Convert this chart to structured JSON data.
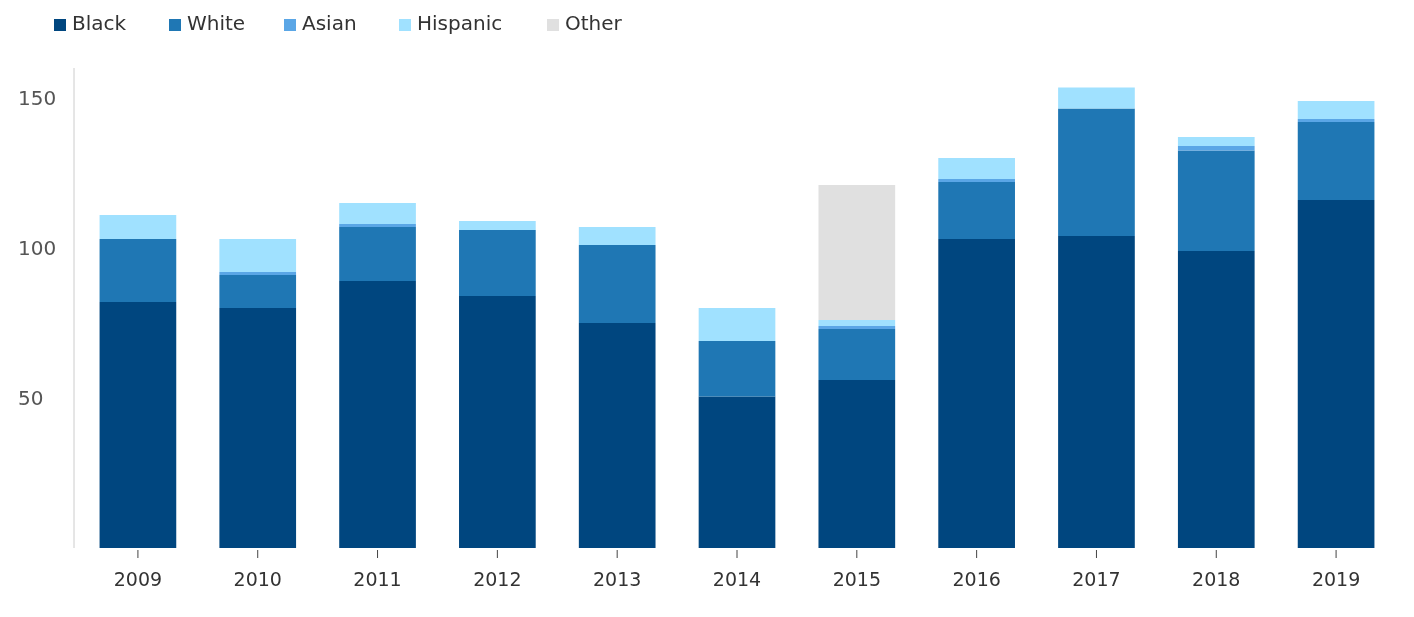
{
  "chart_data": {
    "type": "bar",
    "stacked": true,
    "categories": [
      "2009",
      "2010",
      "2011",
      "2012",
      "2013",
      "2014",
      "2015",
      "2016",
      "2017",
      "2018",
      "2019"
    ],
    "series": [
      {
        "name": "Black",
        "color": "#00467f",
        "values": [
          82,
          80,
          89,
          84,
          75,
          50.5,
          56,
          103,
          104,
          99,
          116
        ]
      },
      {
        "name": "White",
        "color": "#1f77b4",
        "values": [
          21,
          11,
          18,
          22,
          26,
          18.5,
          17,
          19,
          42.5,
          33.5,
          26
        ]
      },
      {
        "name": "Asian",
        "color": "#5aa6e6",
        "values": [
          0,
          1,
          1,
          0,
          0,
          0,
          1,
          1,
          0,
          1.5,
          1
        ]
      },
      {
        "name": "Hispanic",
        "color": "#a0e1ff",
        "values": [
          8,
          11,
          7,
          3,
          6,
          11,
          2,
          7,
          7,
          3,
          6
        ]
      },
      {
        "name": "Other",
        "color": "#e0e0e0",
        "values": [
          0,
          0,
          0,
          0,
          0,
          0,
          45,
          0,
          0,
          0,
          0
        ]
      }
    ],
    "ylim": [
      0,
      160
    ],
    "yticks": [
      50,
      100,
      150
    ],
    "grid": false,
    "legend": "top left"
  }
}
